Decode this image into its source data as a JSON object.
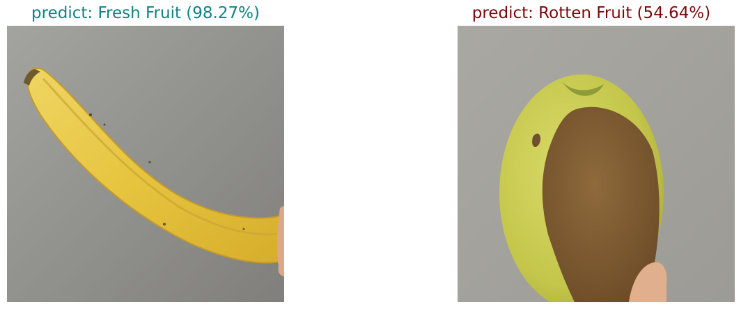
{
  "panels": [
    {
      "title": "predict: Fresh Fruit (98.27%)",
      "title_color": "#0f8282",
      "subject": "banana"
    },
    {
      "title": "predict: Rotten Fruit (54.64%)",
      "title_color": "#7a0a0a",
      "subject": "rotting-apple"
    }
  ]
}
